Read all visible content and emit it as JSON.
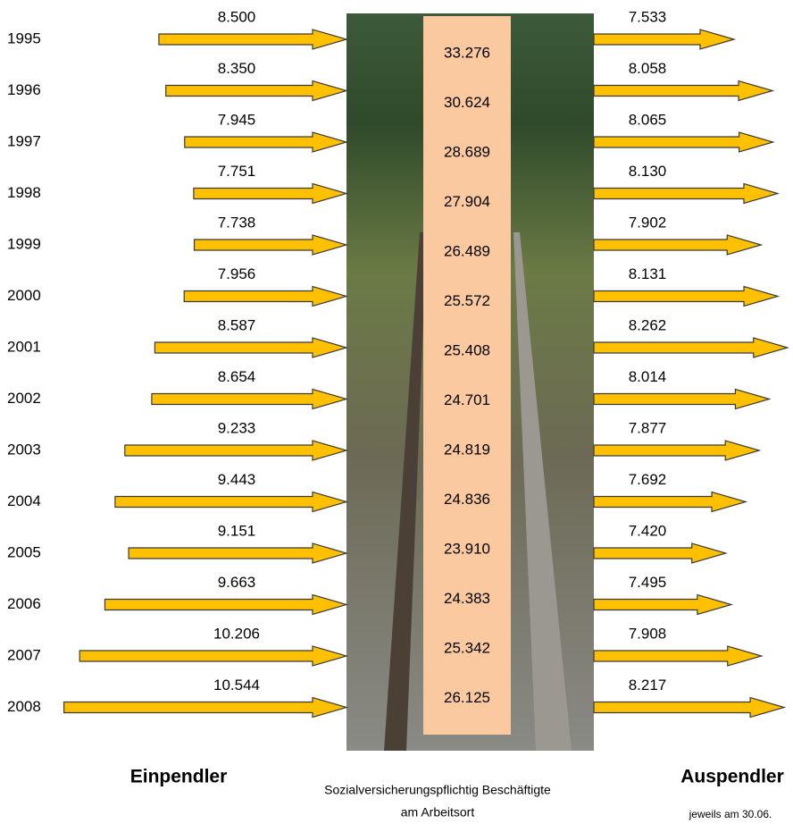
{
  "chart_data": {
    "type": "arrows",
    "categories": [
      "1995",
      "1996",
      "1997",
      "1998",
      "1999",
      "2000",
      "2001",
      "2002",
      "2003",
      "2004",
      "2005",
      "2006",
      "2007",
      "2008"
    ],
    "series": [
      {
        "name": "Einpendler",
        "color": "#ffc000",
        "values": [
          8500,
          8350,
          7945,
          7751,
          7738,
          7956,
          8587,
          8654,
          9233,
          9443,
          9151,
          9663,
          10206,
          10544
        ],
        "value_labels": [
          "8.500",
          "8.350",
          "7.945",
          "7.751",
          "7.738",
          "7.956",
          "8.587",
          "8.654",
          "9.233",
          "9.443",
          "9.151",
          "9.663",
          "10.206",
          "10.544"
        ]
      },
      {
        "name": "Sozialversicherungspflichtig Beschäftigte",
        "color": "#fbc9a0",
        "values": [
          33276,
          30624,
          28689,
          27904,
          26489,
          25572,
          25408,
          24701,
          24819,
          24836,
          23910,
          24383,
          25342,
          26125
        ],
        "value_labels": [
          "33.276",
          "30.624",
          "28.689",
          "27.904",
          "26.489",
          "25.572",
          "25.408",
          "24.701",
          "24.819",
          "24.836",
          "23.910",
          "24.383",
          "25.342",
          "26.125"
        ]
      },
      {
        "name": "Auspendler",
        "color": "#ffc000",
        "values": [
          7533,
          8058,
          8065,
          8130,
          7902,
          8131,
          8262,
          8014,
          7877,
          7692,
          7420,
          7495,
          7908,
          8217
        ],
        "value_labels": [
          "7.533",
          "8.058",
          "8.065",
          "8.130",
          "7.902",
          "8.131",
          "8.262",
          "8.014",
          "7.877",
          "7.692",
          "7.420",
          "7.495",
          "7.908",
          "8.217"
        ]
      }
    ],
    "subtitle": "am Arbeitsort",
    "note": "jeweils am 30.06."
  }
}
